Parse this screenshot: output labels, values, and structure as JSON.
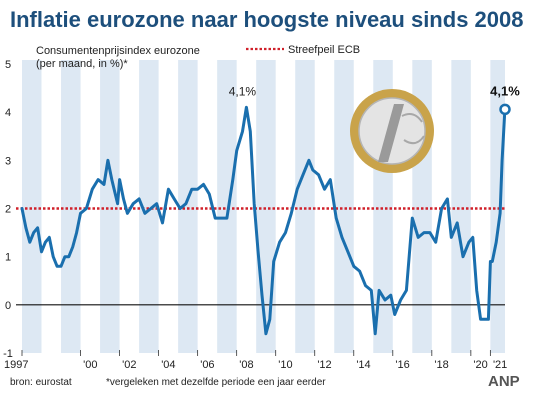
{
  "chart_data": {
    "type": "line",
    "title": "Inflatie eurozone naar hoogste niveau sinds 2008",
    "subtitle_line1": "Consumentenprijsindex eurozone",
    "subtitle_line2": "(per maand, in %)*",
    "ylim": [
      -1,
      5
    ],
    "xlim": [
      1997,
      2021.75
    ],
    "y_ticks": [
      5,
      4,
      3,
      2,
      1,
      0,
      -1
    ],
    "y_tick_labels": [
      "5",
      "4",
      "3",
      "2",
      "1",
      "0",
      "-1"
    ],
    "x_ticks": [
      1997,
      2000,
      2002,
      2004,
      2006,
      2008,
      2010,
      2012,
      2014,
      2016,
      2018,
      2020,
      2021
    ],
    "x_tick_labels": [
      "1997",
      "'00",
      "'02",
      "'04",
      "'06",
      "'08",
      "'10",
      "'12",
      "'14",
      "'16",
      "'18",
      "'20",
      "'21"
    ],
    "reference_line": {
      "value": 2,
      "label": "Streefpeil ECB",
      "color": "#d0202a"
    },
    "zero_line": 0,
    "series": [
      {
        "name": "",
        "color": "#1a6fae",
        "x": [
          1997.0,
          1997.2,
          1997.4,
          1997.6,
          1997.8,
          1998.0,
          1998.2,
          1998.4,
          1998.6,
          1998.8,
          1999.0,
          1999.2,
          1999.4,
          1999.6,
          1999.8,
          2000.0,
          2000.3,
          2000.6,
          2000.9,
          2001.2,
          2001.4,
          2001.6,
          2001.9,
          2002.0,
          2002.2,
          2002.4,
          2002.7,
          2003.0,
          2003.3,
          2003.6,
          2003.9,
          2004.2,
          2004.5,
          2004.8,
          2005.1,
          2005.4,
          2005.7,
          2006.0,
          2006.3,
          2006.6,
          2006.9,
          2007.2,
          2007.5,
          2007.8,
          2008.0,
          2008.3,
          2008.5,
          2008.7,
          2008.9,
          2009.1,
          2009.3,
          2009.5,
          2009.7,
          2009.9,
          2010.2,
          2010.5,
          2010.8,
          2011.1,
          2011.4,
          2011.7,
          2011.9,
          2012.2,
          2012.5,
          2012.8,
          2013.1,
          2013.4,
          2013.7,
          2014.0,
          2014.3,
          2014.6,
          2014.9,
          2015.1,
          2015.3,
          2015.6,
          2015.9,
          2016.1,
          2016.4,
          2016.7,
          2017.0,
          2017.3,
          2017.6,
          2017.9,
          2018.2,
          2018.5,
          2018.8,
          2019.0,
          2019.3,
          2019.6,
          2019.9,
          2020.1,
          2020.3,
          2020.5,
          2020.7,
          2020.9,
          2021.0,
          2021.1,
          2021.3,
          2021.5,
          2021.6,
          2021.75
        ],
        "y": [
          2.0,
          1.6,
          1.3,
          1.5,
          1.6,
          1.1,
          1.3,
          1.4,
          1.0,
          0.8,
          0.8,
          1.0,
          1.0,
          1.2,
          1.5,
          1.9,
          2.0,
          2.4,
          2.6,
          2.5,
          3.0,
          2.6,
          2.1,
          2.6,
          2.2,
          1.9,
          2.1,
          2.2,
          1.9,
          2.0,
          2.1,
          1.7,
          2.4,
          2.2,
          2.0,
          2.1,
          2.4,
          2.4,
          2.5,
          2.3,
          1.8,
          1.8,
          1.8,
          2.6,
          3.2,
          3.6,
          4.1,
          3.6,
          2.1,
          1.1,
          0.2,
          -0.6,
          -0.3,
          0.9,
          1.3,
          1.5,
          1.9,
          2.4,
          2.7,
          3.0,
          2.8,
          2.7,
          2.4,
          2.6,
          1.8,
          1.4,
          1.1,
          0.8,
          0.7,
          0.4,
          0.3,
          -0.6,
          0.3,
          0.1,
          0.2,
          -0.2,
          0.1,
          0.3,
          1.8,
          1.4,
          1.5,
          1.5,
          1.3,
          2.0,
          2.2,
          1.4,
          1.7,
          1.0,
          1.3,
          1.4,
          0.3,
          -0.3,
          -0.3,
          -0.3,
          0.9,
          0.9,
          1.3,
          1.9,
          3.0,
          4.1
        ]
      }
    ],
    "annotations": [
      {
        "x": 2008.5,
        "y": 4.1,
        "text": "4,1%"
      },
      {
        "x": 2021.75,
        "y": 4.1,
        "text": "4,1%"
      }
    ]
  },
  "footer": {
    "source": "bron: eurostat",
    "note": "*vergeleken met dezelfde periode een jaar eerder",
    "logo": "ANP"
  }
}
